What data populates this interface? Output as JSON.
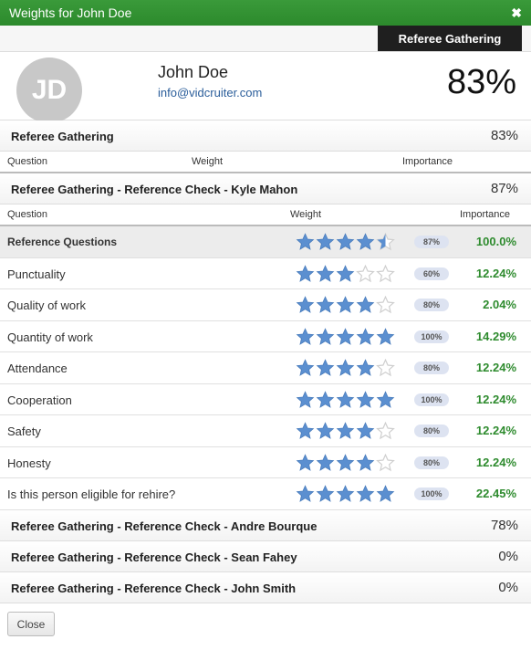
{
  "window": {
    "title": "Weights for John Doe",
    "close_glyph": "✖"
  },
  "tabs": {
    "active_label": "Referee Gathering"
  },
  "profile": {
    "initials": "JD",
    "name": "John Doe",
    "email": "info@vidcruiter.com",
    "score": "83%"
  },
  "summary": {
    "label": "Referee Gathering",
    "score": "83%",
    "columns": {
      "question": "Question",
      "weight": "Weight",
      "importance": "Importance"
    }
  },
  "reference_check_1": {
    "label": "Referee Gathering - Reference Check - Kyle Mahon",
    "score": "87%",
    "columns": {
      "question": "Question",
      "weight": "Weight",
      "importance": "Importance"
    },
    "rows": [
      {
        "question": "Reference Questions",
        "rating": 4.5,
        "weight": "87%",
        "importance": "100.0%",
        "group": true
      },
      {
        "question": "Punctuality",
        "rating": 3,
        "weight": "60%",
        "importance": "12.24%"
      },
      {
        "question": "Quality of work",
        "rating": 4,
        "weight": "80%",
        "importance": "2.04%"
      },
      {
        "question": "Quantity of work",
        "rating": 5,
        "weight": "100%",
        "importance": "14.29%"
      },
      {
        "question": "Attendance",
        "rating": 4,
        "weight": "80%",
        "importance": "12.24%"
      },
      {
        "question": "Cooperation",
        "rating": 5,
        "weight": "100%",
        "importance": "12.24%"
      },
      {
        "question": "Safety",
        "rating": 4,
        "weight": "80%",
        "importance": "12.24%"
      },
      {
        "question": "Honesty",
        "rating": 4,
        "weight": "80%",
        "importance": "12.24%"
      },
      {
        "question": "Is this person eligible for rehire?",
        "rating": 5,
        "weight": "100%",
        "importance": "22.45%"
      }
    ]
  },
  "other_checks": [
    {
      "label": "Referee Gathering - Reference Check - Andre Bourque",
      "score": "78%"
    },
    {
      "label": "Referee Gathering - Reference Check - Sean Fahey",
      "score": "0%"
    },
    {
      "label": "Referee Gathering - Reference Check - John Smith",
      "score": "0%"
    }
  ],
  "footer": {
    "close_label": "Close"
  },
  "colors": {
    "star_filled": "#5b8fd0",
    "star_empty": "#cfcfcf",
    "importance": "#2e8b2e",
    "title_bar": "#2c8a2c"
  }
}
